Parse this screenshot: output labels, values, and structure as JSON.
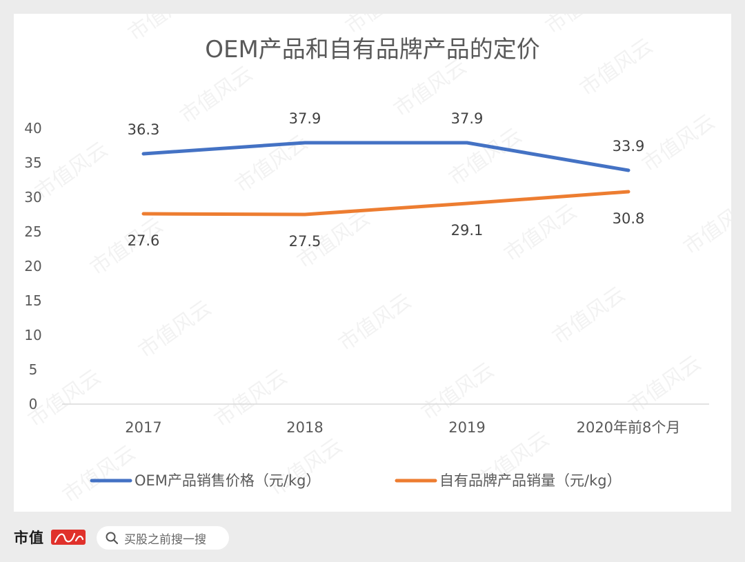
{
  "chart_data": {
    "type": "line",
    "title": "OEM产品和自有品牌产品的定价",
    "categories": [
      "2017",
      "2018",
      "2019",
      "2020年前8个月"
    ],
    "ylim": [
      0,
      40
    ],
    "yticks": [
      "0",
      "5",
      "10",
      "15",
      "20",
      "25",
      "30",
      "35",
      "40"
    ],
    "grid": false,
    "legend_position": "bottom",
    "series": [
      {
        "name": "OEM产品销售价格（元/kg）",
        "color": "#4472c4",
        "values": [
          36.3,
          37.9,
          37.9,
          33.9
        ],
        "labels": [
          "36.3",
          "37.9",
          "37.9",
          "33.9"
        ]
      },
      {
        "name": "自有品牌产品销量（元/kg）",
        "color": "#ed7d31",
        "values": [
          27.6,
          27.5,
          29.1,
          30.8
        ],
        "labels": [
          "27.6",
          "27.5",
          "29.1",
          "30.8"
        ]
      }
    ]
  },
  "watermark": "市值风云",
  "footer": {
    "brand": "市值",
    "brand_logo_color": "#e0312b",
    "search_placeholder": "买股之前搜一搜",
    "search_icon": "search-icon"
  }
}
